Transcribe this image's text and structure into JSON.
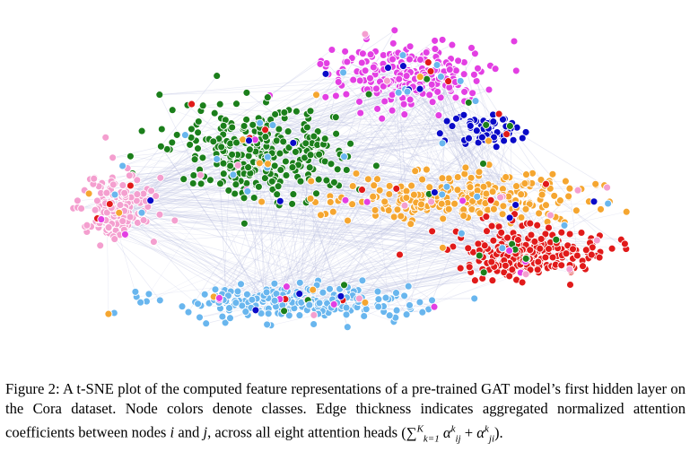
{
  "caption": {
    "label": "Figure 2:",
    "text_1": "A t-SNE plot of the computed feature representations of a pre-trained GAT model’s first hidden layer on the Cora dataset. Node colors denote classes. Edge thickness indicates aggregated normalized attention coefficients between nodes",
    "var_i": "i",
    "text_and": "and",
    "var_j": "j",
    "text_2": ", across all eight attention heads",
    "formula": {
      "open": "(",
      "sum": "∑",
      "sum_sub": "k=1",
      "sum_sup": "K",
      "alpha": "α",
      "sup_k": "k",
      "sub_ij": "ij",
      "plus": "+",
      "sub_ji": "ji",
      "close": ")."
    }
  },
  "chart_data": {
    "type": "scatter",
    "title": "",
    "xlabel": "",
    "ylabel": "",
    "axes_visible": false,
    "grid": false,
    "legend": "none",
    "edge_color": "#b8bde0",
    "clusters": [
      {
        "color": "#e33fe3",
        "center": [
          0.6,
          0.17
        ],
        "spread": [
          0.085,
          0.07
        ],
        "count": 230
      },
      {
        "color": "#1b7f1b",
        "center": [
          0.37,
          0.4
        ],
        "spread": [
          0.1,
          0.09
        ],
        "count": 290
      },
      {
        "color": "#f49fcf",
        "center": [
          0.13,
          0.57
        ],
        "spread": [
          0.04,
          0.07
        ],
        "count": 160
      },
      {
        "color": "#0a0ac8",
        "center": [
          0.73,
          0.34
        ],
        "spread": [
          0.035,
          0.035
        ],
        "count": 70
      },
      {
        "color": "#f5a630",
        "center": [
          0.68,
          0.54
        ],
        "spread": [
          0.14,
          0.05
        ],
        "count": 250
      },
      {
        "color": "#e11a1a",
        "center": [
          0.8,
          0.71
        ],
        "spread": [
          0.075,
          0.05
        ],
        "count": 230
      },
      {
        "color": "#69b6ee",
        "center": [
          0.42,
          0.86
        ],
        "spread": [
          0.13,
          0.035
        ],
        "count": 230
      }
    ]
  }
}
